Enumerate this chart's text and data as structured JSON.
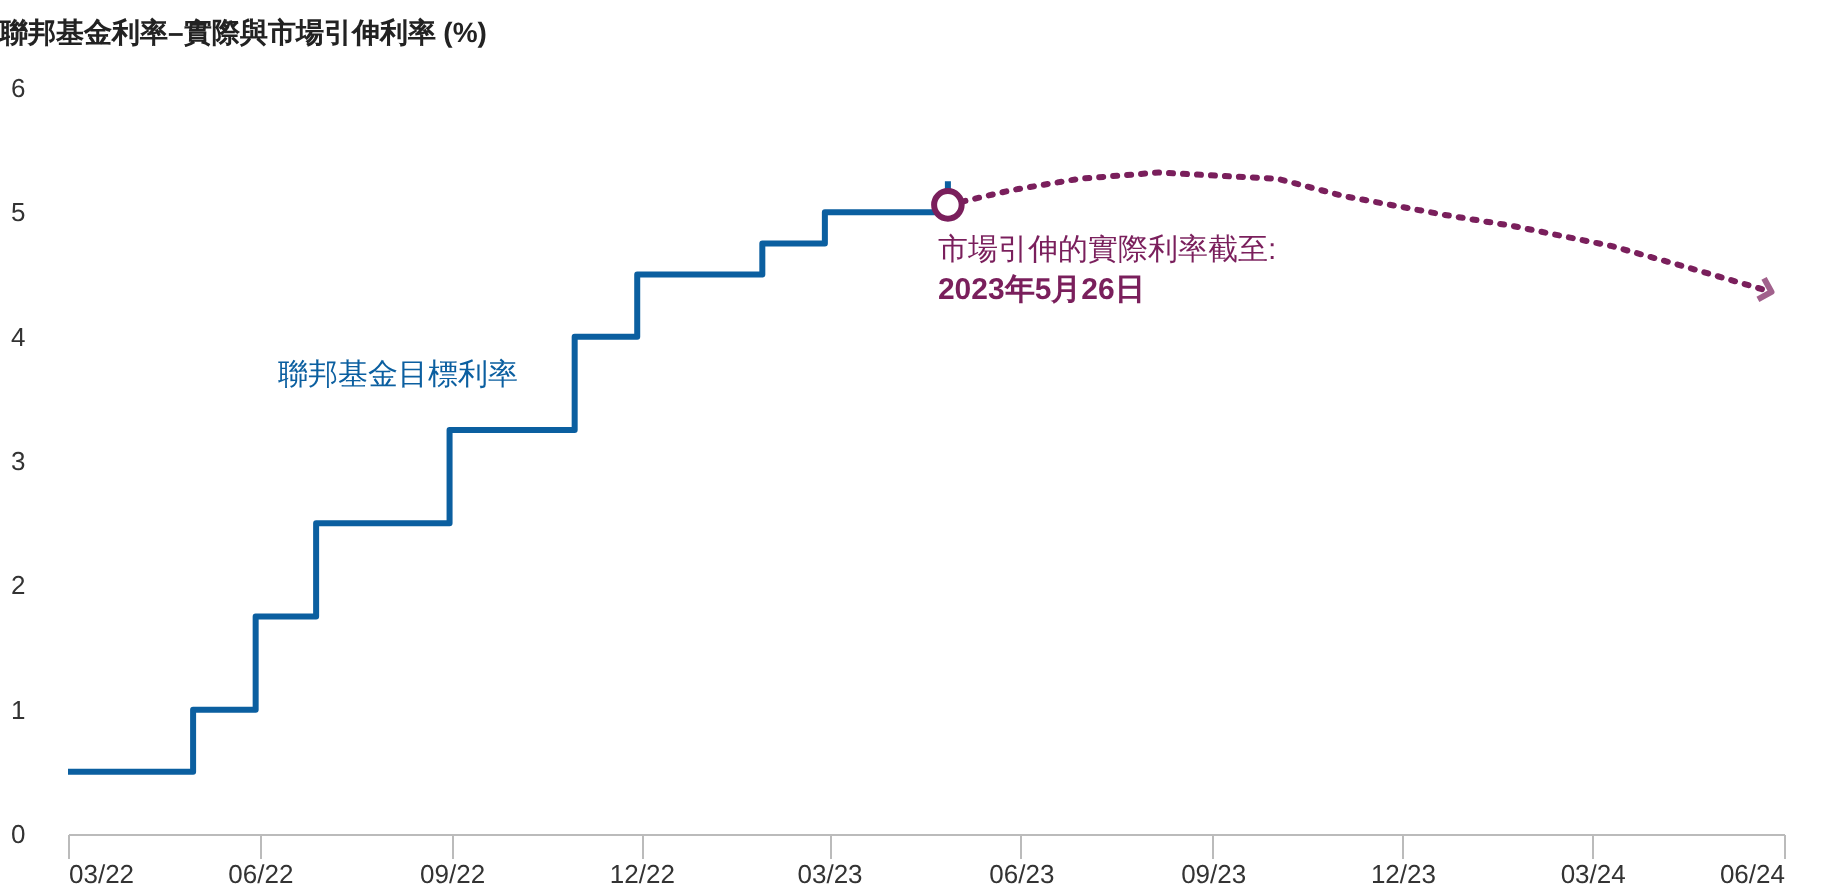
{
  "chart_data": {
    "type": "line",
    "title": "聯邦基金利率–實際與市場引伸利率 (%)",
    "xlim": [
      "2022-03",
      "2024-06"
    ],
    "xticks": [
      {
        "value": "2022-03",
        "label": "03/22"
      },
      {
        "value": "2022-06",
        "label": "06/22"
      },
      {
        "value": "2022-09",
        "label": "09/22"
      },
      {
        "value": "2022-12",
        "label": "12/22"
      },
      {
        "value": "2023-03",
        "label": "03/23"
      },
      {
        "value": "2023-06",
        "label": "06/23"
      },
      {
        "value": "2023-09",
        "label": "09/23"
      },
      {
        "value": "2023-12",
        "label": "12/23"
      },
      {
        "value": "2024-03",
        "label": "03/24"
      },
      {
        "value": "2024-06",
        "label": "06/24"
      }
    ],
    "ylim": [
      0,
      6
    ],
    "yticks": [
      0,
      1,
      2,
      3,
      4,
      5,
      6
    ],
    "grid": false,
    "marker": "none",
    "series": [
      {
        "name": "聯邦基金目標利率",
        "type": "step",
        "color": "#0b5fa0",
        "line_style": "solid",
        "x": [
          "2022-03-01",
          "2022-04-30",
          "2022-05-30",
          "2022-06-28",
          "2022-08-31",
          "2022-10-30",
          "2022-11-29",
          "2023-01-28",
          "2023-02-27",
          "2023-04-27"
        ],
        "values": [
          0.5,
          1.0,
          1.75,
          2.5,
          3.25,
          4.0,
          4.5,
          4.75,
          5.0,
          5.25
        ]
      },
      {
        "color": "#7a1f5c",
        "line_style": "dotted",
        "x": [
          "2023-04-27",
          "2023-05-28",
          "2023-06-29",
          "2023-08-06",
          "2023-10-02",
          "2023-11-03",
          "2023-12-21",
          "2024-01-23",
          "2024-03-10",
          "2024-04-11",
          "2024-05-26"
        ],
        "values": [
          5.06,
          5.18,
          5.27,
          5.32,
          5.27,
          5.13,
          4.98,
          4.89,
          4.73,
          4.58,
          4.36
        ]
      }
    ],
    "annotations": [
      {
        "text": "市場引伸的實際利率截至:\n2023年5月26日",
        "x": "2023-04-27",
        "y": 5.06
      }
    ]
  }
}
